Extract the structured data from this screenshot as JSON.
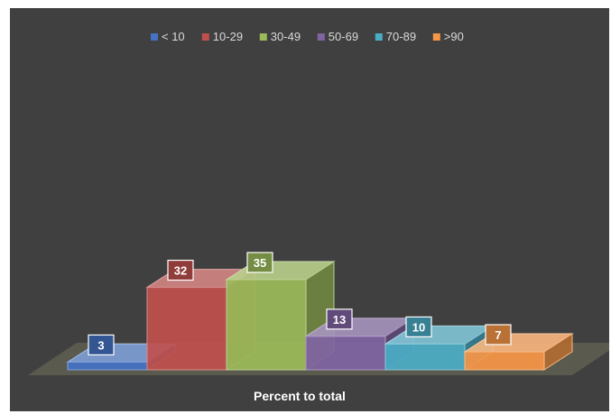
{
  "chart_data": {
    "type": "bar",
    "categories": [
      "< 10",
      "10-29",
      "30-49",
      "50-69",
      "70-89",
      ">90"
    ],
    "values": [
      3,
      32,
      35,
      13,
      10,
      7
    ],
    "xlabel": "Percent to total",
    "ylabel": "",
    "legend_position": "top",
    "grid": false,
    "style": "3d-columns",
    "colors": [
      "#4472c4",
      "#c0504d",
      "#9bbb59",
      "#8064a2",
      "#4bacc6",
      "#f79646"
    ],
    "background": "#404040"
  }
}
